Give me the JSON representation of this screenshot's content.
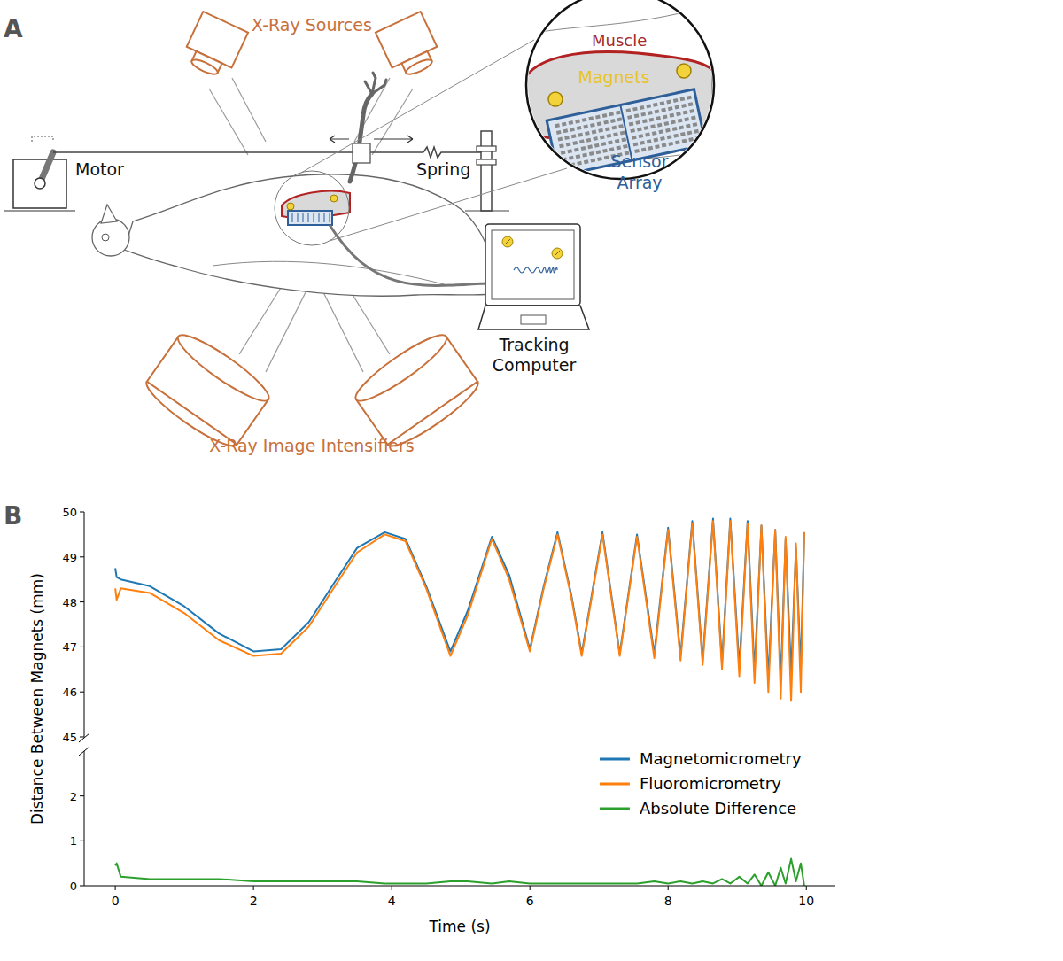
{
  "diagram": {
    "panel_label": "A",
    "x_ray_sources": "X-Ray Sources",
    "motor": "Motor",
    "spring": "Spring",
    "muscle": "Muscle",
    "magnets": "Magnets",
    "sensor_array": "Sensor Array",
    "tracking_computer": "Tracking Computer",
    "x_ray_image_intensifiers": "X-Ray Image Intensifiers"
  },
  "chart_data": {
    "type": "line",
    "panel_label": "B",
    "x_label": "Time (s)",
    "y_label": "Distance Between Magnets (mm)",
    "x": [
      0,
      0.02,
      0.08,
      0.5,
      1.0,
      1.5,
      2.0,
      2.4,
      2.8,
      3.2,
      3.5,
      3.9,
      4.2,
      4.5,
      4.85,
      5.1,
      5.45,
      5.7,
      6.0,
      6.2,
      6.4,
      6.6,
      6.75,
      7.05,
      7.3,
      7.55,
      7.8,
      8.0,
      8.18,
      8.35,
      8.5,
      8.65,
      8.78,
      8.9,
      9.03,
      9.15,
      9.25,
      9.35,
      9.45,
      9.55,
      9.63,
      9.7,
      9.78,
      9.85,
      9.92,
      9.97
    ],
    "xlim": [
      -0.45,
      10.42
    ],
    "xticks": [
      0,
      2,
      4,
      6,
      8,
      10
    ],
    "ylim": [
      45,
      50
    ],
    "yticks": [
      45,
      46,
      47,
      48,
      49,
      50
    ],
    "y2lim": [
      0,
      3
    ],
    "y2ticks": [
      0,
      1,
      2
    ],
    "legend": "lower right",
    "series": [
      {
        "name": "Magnetomicrometry",
        "color": "#1f77b4",
        "values": [
          48.75,
          48.55,
          48.5,
          48.35,
          47.9,
          47.3,
          46.9,
          46.95,
          47.55,
          48.5,
          49.2,
          49.55,
          49.4,
          48.35,
          46.9,
          47.8,
          49.45,
          48.6,
          46.95,
          48.35,
          49.55,
          48.15,
          46.85,
          49.55,
          46.85,
          49.5,
          46.85,
          49.65,
          46.8,
          49.8,
          46.7,
          49.85,
          46.65,
          49.85,
          46.55,
          49.8,
          46.45,
          49.7,
          46.3,
          49.6,
          46.25,
          49.4,
          46.4,
          49.2,
          46.5,
          49.55
        ]
      },
      {
        "name": "Fluoromicrometry",
        "color": "#ff7f0e",
        "values": [
          48.3,
          48.05,
          48.3,
          48.2,
          47.75,
          47.15,
          46.8,
          46.85,
          47.45,
          48.4,
          49.1,
          49.5,
          49.35,
          48.3,
          46.8,
          47.7,
          49.4,
          48.5,
          46.9,
          48.3,
          49.5,
          48.1,
          46.8,
          49.5,
          46.8,
          49.45,
          46.75,
          49.6,
          46.7,
          49.75,
          46.6,
          49.8,
          46.5,
          49.8,
          46.35,
          49.75,
          46.2,
          49.7,
          46.0,
          49.6,
          45.85,
          49.45,
          45.8,
          49.3,
          46.0,
          49.55
        ]
      },
      {
        "name": "Absolute Difference",
        "color": "#2ca02c",
        "axis": "y2",
        "values": [
          0.45,
          0.5,
          0.2,
          0.15,
          0.15,
          0.15,
          0.1,
          0.1,
          0.1,
          0.1,
          0.1,
          0.05,
          0.05,
          0.05,
          0.1,
          0.1,
          0.05,
          0.1,
          0.05,
          0.05,
          0.05,
          0.05,
          0.05,
          0.05,
          0.05,
          0.05,
          0.1,
          0.05,
          0.1,
          0.05,
          0.1,
          0.05,
          0.15,
          0.05,
          0.2,
          0.05,
          0.25,
          0,
          0.3,
          0,
          0.4,
          0.05,
          0.6,
          0.1,
          0.5,
          0
        ]
      }
    ]
  }
}
